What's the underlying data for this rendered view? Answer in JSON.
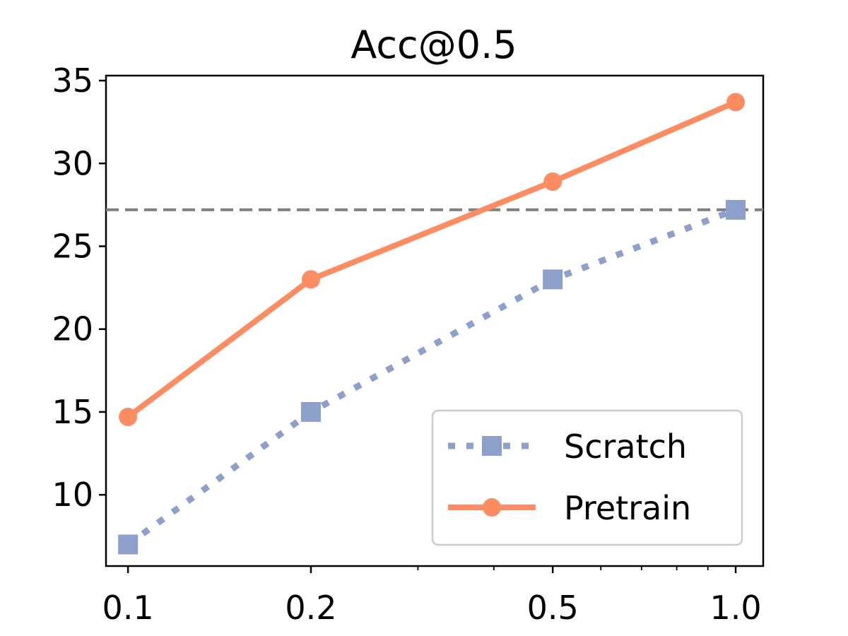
{
  "chart_data": {
    "type": "line",
    "title": "Acc@0.5",
    "xlabel": "",
    "ylabel": "",
    "x_scale": "log",
    "x": [
      0.1,
      0.2,
      0.5,
      1.0
    ],
    "x_tick_labels": [
      "0.1",
      "0.2",
      "0.5",
      "1.0"
    ],
    "y_ticks": [
      10,
      15,
      20,
      25,
      30,
      35
    ],
    "y_tick_labels": [
      "10",
      "15",
      "20",
      "25",
      "30",
      "35"
    ],
    "xlim": [
      0.092,
      1.11
    ],
    "ylim": [
      5.7,
      35.3
    ],
    "grid": false,
    "legend_position": "lower-right",
    "reference_line": {
      "y": 27.2,
      "style": "dashed",
      "color": "#808080"
    },
    "series": [
      {
        "name": "Scratch",
        "values": [
          7.0,
          15.0,
          23.0,
          27.2
        ],
        "color": "#8da0cb",
        "line_style": "dotted",
        "marker": "square"
      },
      {
        "name": "Pretrain",
        "values": [
          14.7,
          23.0,
          28.9,
          33.7
        ],
        "color": "#fc8d62",
        "line_style": "solid",
        "marker": "circle"
      }
    ]
  }
}
